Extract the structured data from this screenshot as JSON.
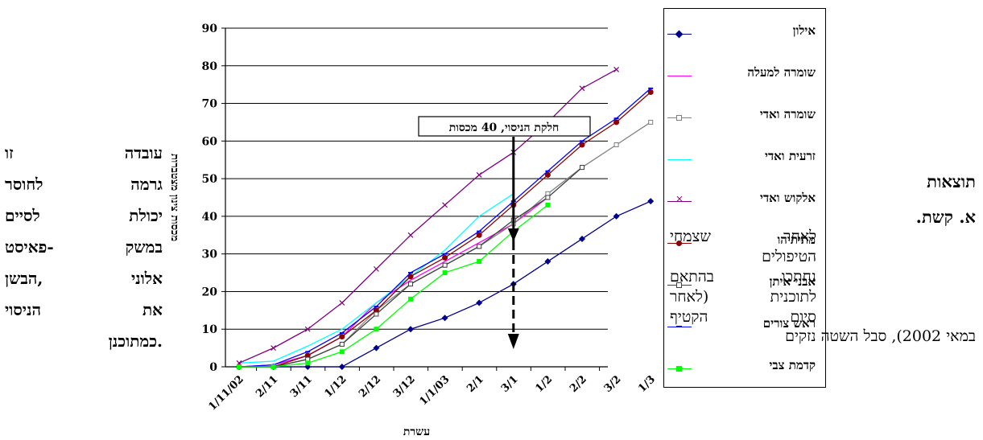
{
  "left_text": {
    "rows": [
      [
        "עובדה",
        "זו"
      ],
      [
        "גרמה",
        "לחוסר"
      ],
      [
        "יכולת",
        "לסיים"
      ],
      [
        "במשק",
        "פאיסט-"
      ],
      [
        "אלוני",
        "הבשן,"
      ],
      [
        "את",
        "הניסוי"
      ],
      [
        "כמתוכנן."
      ]
    ]
  },
  "right_text": {
    "heading": "תוצאות",
    "subheading": "א. קשת.",
    "lines": [
      "לאחר שצמחי",
      "הטיפולים",
      "נחתכו בהתאם",
      "לתוכנית (לאחר",
      "סיום הקטיף",
      "במאי 2002), סבל השטה נזקים"
    ]
  },
  "chart_data": {
    "type": "line",
    "xlabel": "עשרת",
    "ylabel": "מכסות צינון מצטברות",
    "ylim": [
      0,
      90
    ],
    "yticks": [
      0,
      10,
      20,
      30,
      40,
      50,
      60,
      70,
      80,
      90
    ],
    "x_tick_labels": [
      "1/11/02",
      "2/11",
      "3/11",
      "1/12",
      "2/12",
      "3/12",
      "1/1/03",
      "2/1",
      "3/1",
      "1/2",
      "2/2",
      "3/2",
      "1/3"
    ],
    "annotation": {
      "text": "חלקת הניסוי, 40  מכסות",
      "x": 8
    },
    "grid": "horizontal",
    "legend_position": "right",
    "series": [
      {
        "name": "אילון",
        "color": "#00008B",
        "marker": "diamond",
        "x": [
          0,
          1,
          2,
          3,
          4,
          5,
          6,
          7,
          8,
          9,
          10,
          11,
          12
        ],
        "values": [
          0,
          0,
          0,
          0,
          5,
          10,
          13,
          17,
          22,
          28,
          34,
          40,
          44
        ]
      },
      {
        "name": "שומרה למעלה",
        "color": "#FF00FF",
        "marker": "none",
        "x": [
          0,
          1,
          2,
          3,
          4,
          5,
          6,
          7,
          8,
          9
        ],
        "values": [
          0,
          0.5,
          3,
          8,
          17,
          23,
          28,
          33,
          38,
          45
        ]
      },
      {
        "name": "שומרה ואדי",
        "color": "#808080",
        "marker": "square",
        "x": [
          0,
          1,
          2,
          3,
          4,
          5,
          6,
          7,
          8,
          9,
          10,
          11,
          12
        ],
        "values": [
          0,
          0,
          2,
          6,
          15,
          22,
          27,
          32,
          38,
          46,
          53,
          59,
          65
        ]
      },
      {
        "name": "זרעית ואדי",
        "color": "#00FFFF",
        "marker": "none",
        "x": [
          0,
          1,
          2,
          3,
          4,
          5,
          6,
          7,
          8
        ],
        "values": [
          1,
          1.5,
          5.5,
          10,
          17,
          24,
          31,
          40,
          46
        ]
      },
      {
        "name": "אלקוש ואדי",
        "color": "#800080",
        "marker": "x",
        "x": [
          0,
          1,
          2,
          3,
          4,
          5,
          6,
          7,
          8,
          9,
          10,
          11
        ],
        "values": [
          1,
          5,
          10,
          17,
          26,
          35,
          43,
          51,
          57,
          65,
          74,
          79
        ]
      },
      {
        "name": "מתיתיהו",
        "color": "#8B0000",
        "marker": "circle",
        "x": [
          0,
          1,
          2,
          3,
          4,
          5,
          6,
          7,
          8,
          9,
          10,
          11,
          12
        ],
        "values": [
          0,
          0,
          3,
          8,
          15,
          24,
          29,
          35,
          43,
          51,
          59,
          65,
          73
        ]
      },
      {
        "name": "אבני איתן",
        "color": "#404040",
        "marker": "square",
        "x": [
          0,
          1,
          2,
          3,
          4,
          5,
          6,
          7,
          8,
          9,
          10
        ],
        "values": [
          0,
          0,
          2,
          6,
          14,
          22,
          27,
          32,
          39,
          45,
          53
        ]
      },
      {
        "name": "ראש צורים",
        "color": "#0000FF",
        "marker": "dash",
        "x": [
          0,
          1,
          2,
          3,
          4,
          5,
          6,
          7,
          8,
          9,
          10,
          11,
          12
        ],
        "values": [
          0,
          0.5,
          4,
          9,
          16,
          25,
          30,
          36,
          44,
          52,
          60,
          66,
          74
        ]
      },
      {
        "name": "קדמת צבי",
        "color": "#00FF00",
        "marker": "square",
        "x": [
          0,
          1,
          2,
          3,
          4,
          5,
          6,
          7,
          8,
          9
        ],
        "values": [
          0,
          0,
          1,
          4,
          10,
          18,
          25,
          28,
          36,
          43
        ]
      }
    ]
  }
}
